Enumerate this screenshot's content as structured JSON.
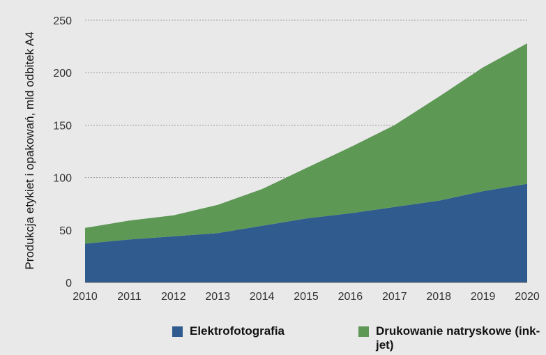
{
  "chart_data": {
    "type": "area",
    "stacked": true,
    "x": [
      2010,
      2011,
      2012,
      2013,
      2014,
      2015,
      2016,
      2017,
      2018,
      2019,
      2020
    ],
    "series": [
      {
        "name": "Elektrofotografia",
        "color": "#2f5b8e",
        "values": [
          37,
          41,
          44,
          47,
          54,
          61,
          66,
          72,
          78,
          87,
          94
        ]
      },
      {
        "name": "Drukowanie natryskowe (ink-jet)",
        "color": "#5e9855",
        "values": [
          15,
          18,
          20,
          27,
          35,
          48,
          63,
          78,
          99,
          118,
          134
        ]
      }
    ],
    "ylabel": "Produkcja etykiet i opakowań, mld odbitek A4",
    "xlabel": "",
    "ylim": [
      0,
      250
    ],
    "yticks": [
      0,
      50,
      100,
      150,
      200,
      250
    ],
    "grid": "horizontal dashed",
    "legend_position": "bottom"
  },
  "legend": {
    "items": [
      {
        "label": "Elektrofotografia",
        "color": "#2f5b8e"
      },
      {
        "label": "Drukowanie natryskowe (ink-jet)",
        "color": "#5e9855"
      }
    ]
  }
}
